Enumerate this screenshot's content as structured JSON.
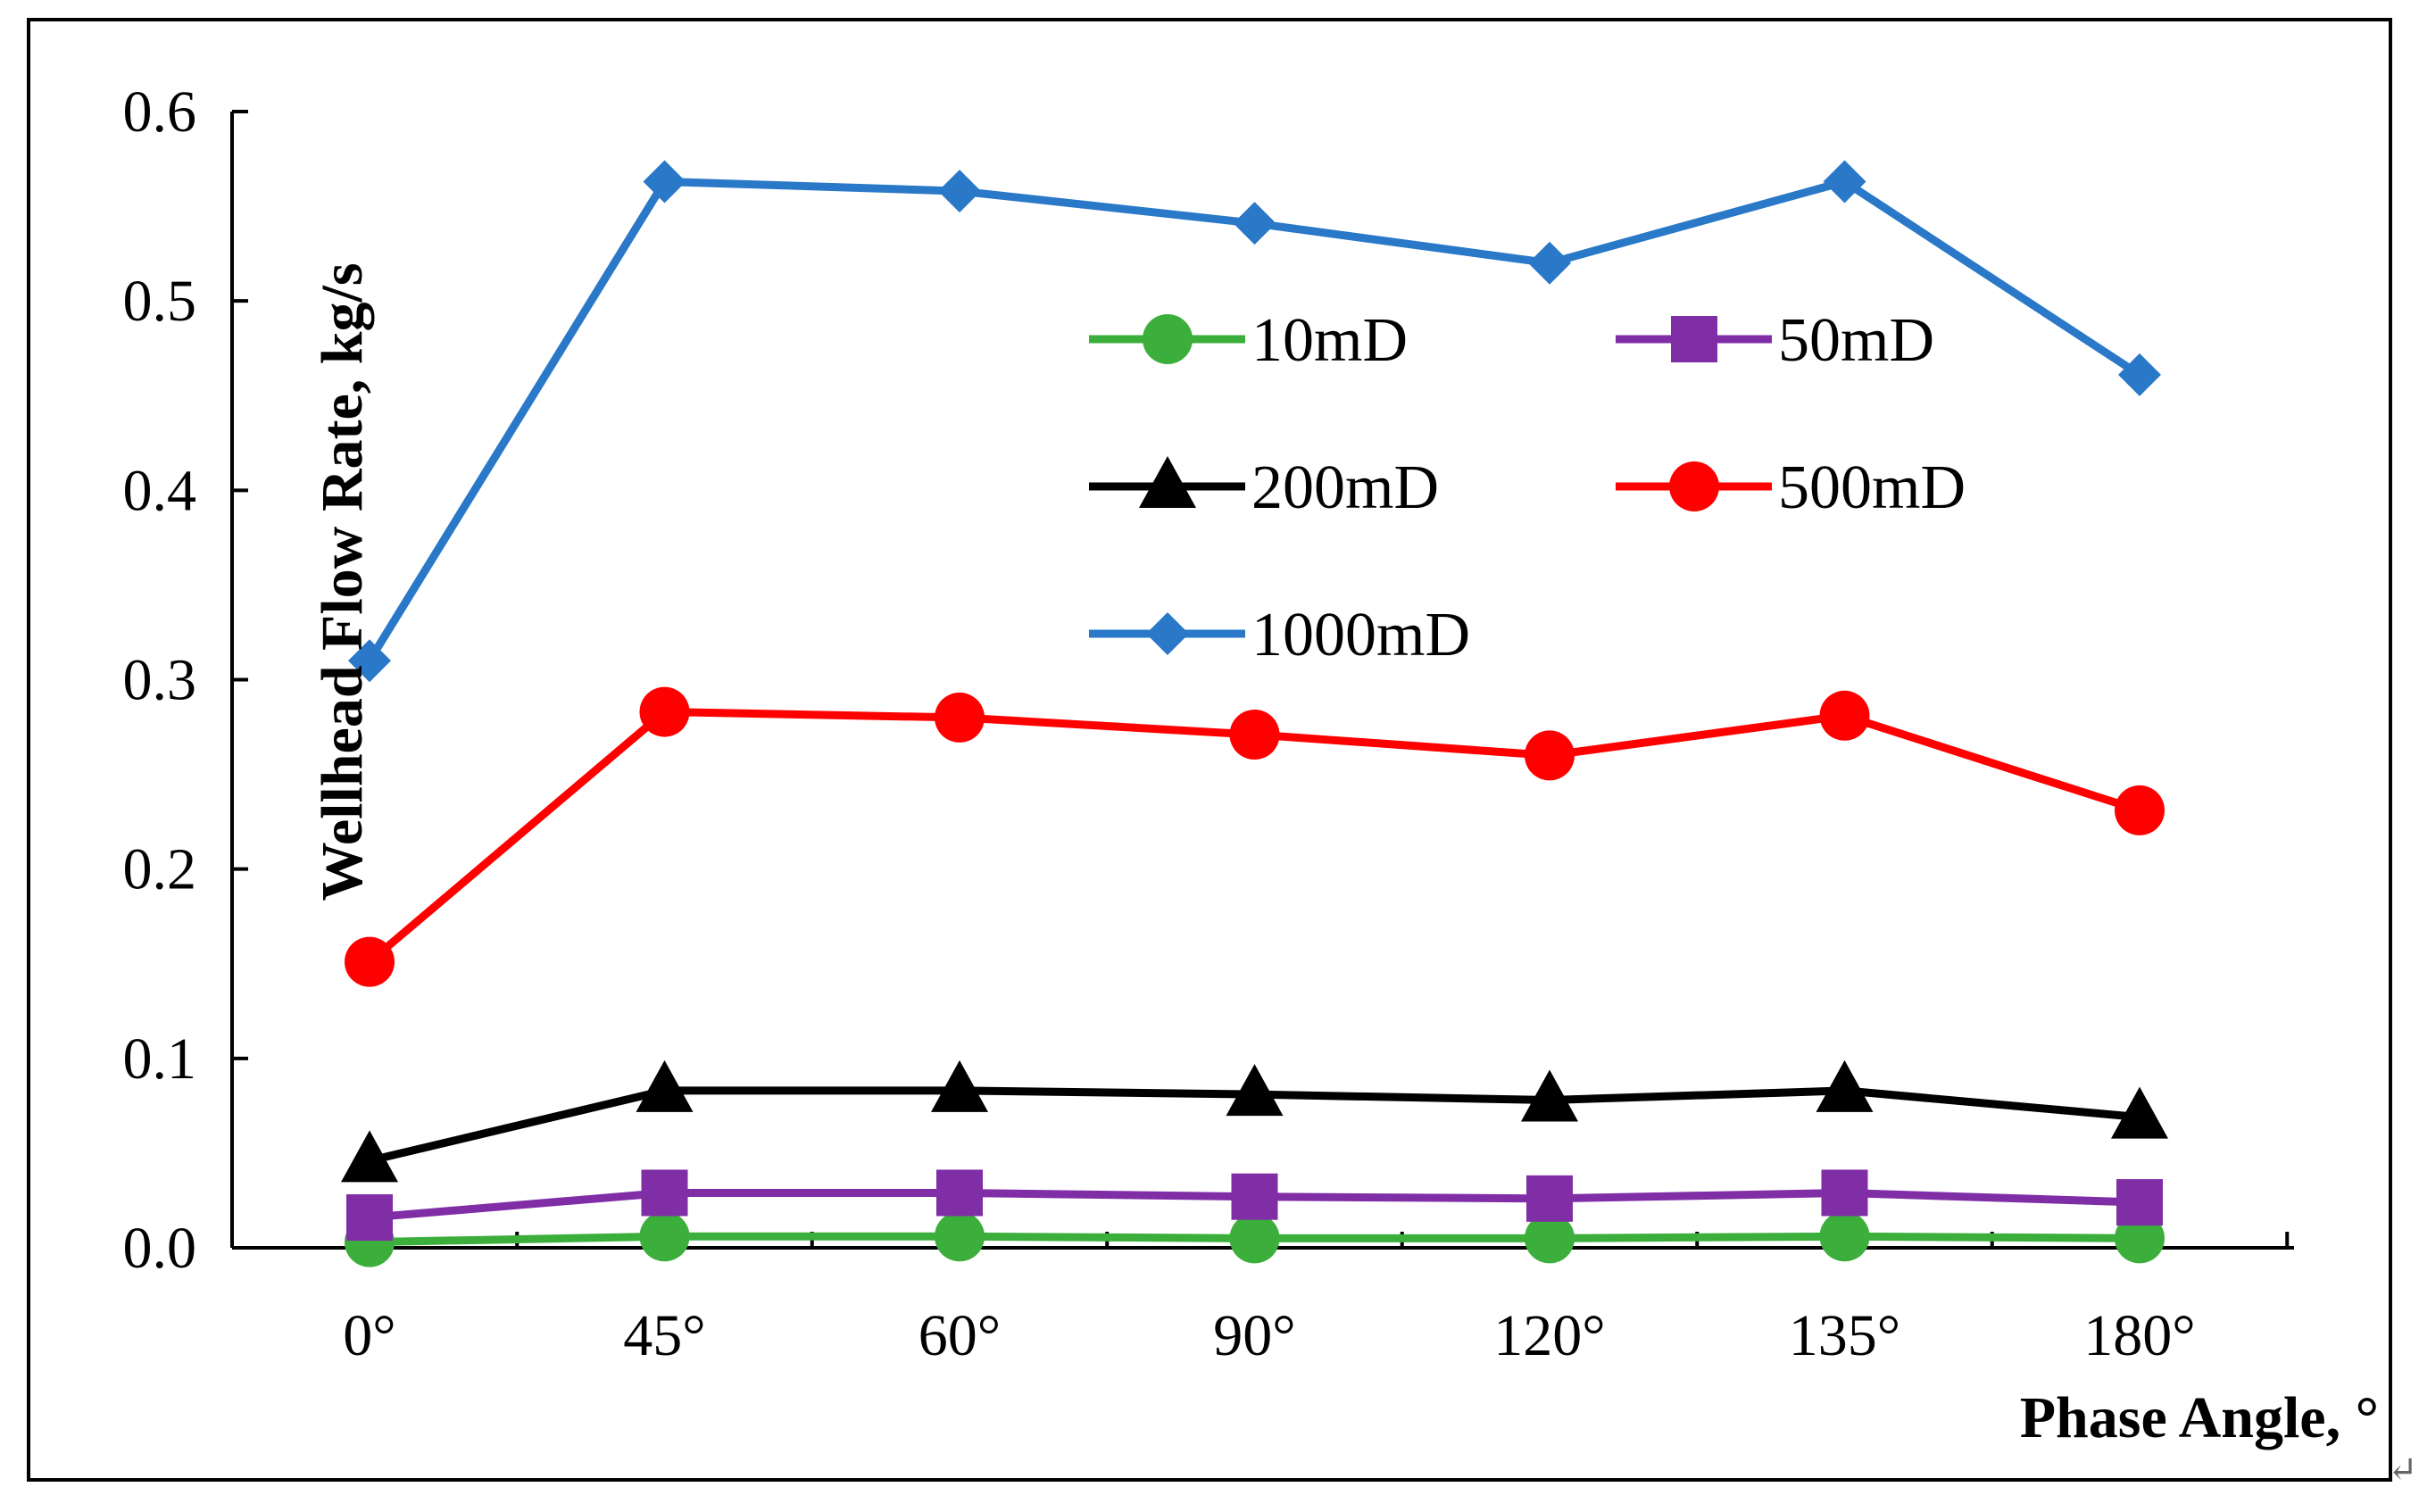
{
  "chart_data": {
    "type": "line",
    "title": "",
    "xlabel": "Phase Angle, °",
    "ylabel": "Wellhead Flow Rate, kg/s",
    "categories": [
      "0°",
      "45°",
      "60°",
      "90°",
      "120°",
      "135°",
      "180°"
    ],
    "ylim": [
      0,
      0.6
    ],
    "yticks": [
      0.0,
      0.1,
      0.2,
      0.3,
      0.4,
      0.5,
      0.6
    ],
    "ytick_labels": [
      "0.0",
      "0.1",
      "0.2",
      "0.3",
      "0.4",
      "0.5",
      "0.6"
    ],
    "grid": false,
    "legend_position": "inside-upper-right",
    "series": [
      {
        "name": "10mD",
        "color": "#3cae3c",
        "marker": "circle",
        "values": [
          0.003,
          0.006,
          0.006,
          0.005,
          0.005,
          0.006,
          0.005
        ]
      },
      {
        "name": "50mD",
        "color": "#7f2ea6",
        "marker": "square",
        "values": [
          0.016,
          0.029,
          0.029,
          0.027,
          0.026,
          0.029,
          0.024
        ]
      },
      {
        "name": "200mD",
        "color": "#000000",
        "marker": "triangle",
        "values": [
          0.046,
          0.083,
          0.083,
          0.081,
          0.078,
          0.083,
          0.069
        ]
      },
      {
        "name": "500mD",
        "color": "#ff0000",
        "marker": "circle",
        "values": [
          0.151,
          0.283,
          0.28,
          0.271,
          0.26,
          0.281,
          0.231
        ]
      },
      {
        "name": "1000mD",
        "color": "#2a78c8",
        "marker": "diamond",
        "values": [
          0.31,
          0.563,
          0.558,
          0.541,
          0.52,
          0.563,
          0.461
        ]
      }
    ]
  },
  "stray_mark": "↵"
}
